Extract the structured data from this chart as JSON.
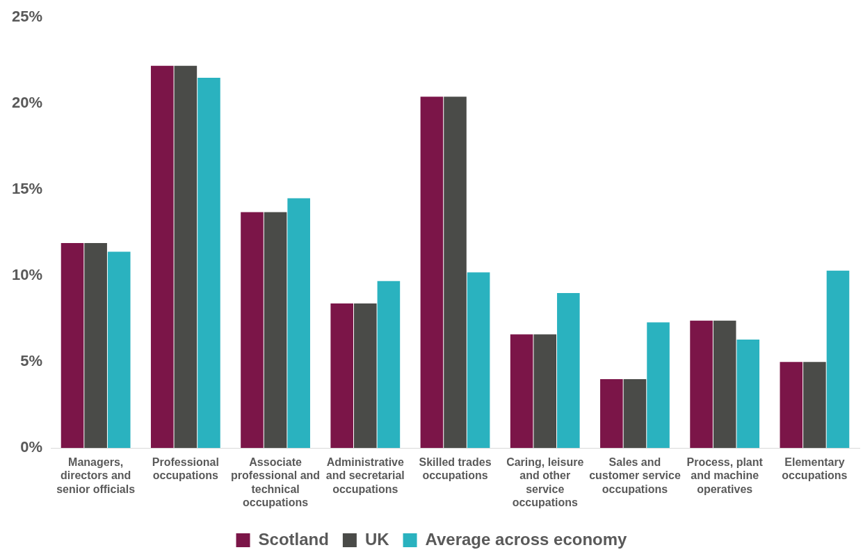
{
  "chart_data": {
    "type": "bar",
    "categories": [
      "Managers, directors and senior officials",
      "Professional occupations",
      "Associate professional and technical occupations",
      "Administrative and secretarial occupations",
      "Skilled trades occupations",
      "Caring, leisure and other service occupations",
      "Sales and customer service occupations",
      "Process, plant and machine operatives",
      "Elementary occupations"
    ],
    "series": [
      {
        "name": "Scotland",
        "color": "#7b1548",
        "values": [
          11.9,
          22.2,
          13.7,
          8.4,
          20.4,
          6.6,
          4.0,
          7.4,
          5.0
        ]
      },
      {
        "name": "UK",
        "color": "#4a4b48",
        "values": [
          11.9,
          22.2,
          13.7,
          8.4,
          20.4,
          6.6,
          4.0,
          7.4,
          5.0
        ]
      },
      {
        "name": "Average across economy",
        "color": "#2ab2bf",
        "values": [
          11.4,
          21.5,
          14.5,
          9.7,
          10.2,
          9.0,
          7.3,
          6.3,
          10.3
        ]
      }
    ],
    "ylim": [
      0,
      25
    ],
    "yticks": [
      {
        "value": 0,
        "label": "0%"
      },
      {
        "value": 5,
        "label": "5%"
      },
      {
        "value": 10,
        "label": "10%"
      },
      {
        "value": 15,
        "label": "15%"
      },
      {
        "value": 20,
        "label": "20%"
      },
      {
        "value": 25,
        "label": "25%"
      }
    ],
    "grid": false,
    "legend": "bottom"
  }
}
